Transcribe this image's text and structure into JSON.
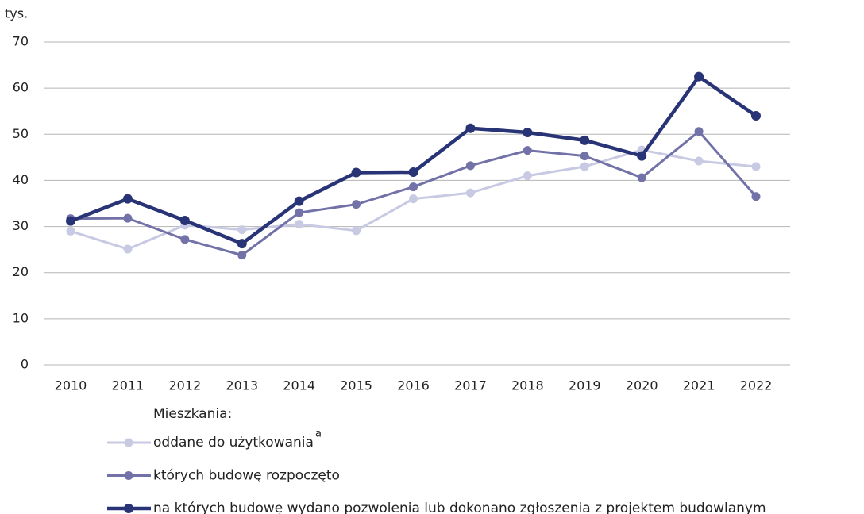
{
  "chart_data": {
    "type": "line",
    "ylabel": "tys.",
    "categories": [
      "2010",
      "2011",
      "2012",
      "2013",
      "2014",
      "2015",
      "2016",
      "2017",
      "2018",
      "2019",
      "2020",
      "2021",
      "2022"
    ],
    "ylim": [
      0,
      70
    ],
    "yticks": [
      0,
      10,
      20,
      30,
      40,
      50,
      60,
      70
    ],
    "grid": true,
    "legend_title": "Mieszkania:",
    "series": [
      {
        "name": "oddane do użytkowania",
        "note": "a",
        "color": "#c8c9e2",
        "values": [
          29.0,
          25.1,
          30.3,
          29.3,
          30.5,
          29.1,
          36.0,
          37.3,
          41.0,
          43.0,
          46.6,
          44.2,
          43.0
        ]
      },
      {
        "name": "których budowę rozpoczęto",
        "color": "#7272a8",
        "values": [
          31.7,
          31.8,
          27.2,
          23.8,
          33.0,
          34.8,
          38.6,
          43.2,
          46.5,
          45.3,
          40.6,
          50.6,
          36.5
        ]
      },
      {
        "name": "na których budowę wydano pozwolenia lub dokonano zgłoszenia z projektem budowlanym",
        "color": "#283476",
        "values": [
          31.2,
          36.0,
          31.3,
          26.3,
          35.5,
          41.7,
          41.8,
          51.3,
          50.4,
          48.7,
          45.3,
          62.5,
          54.0
        ]
      }
    ]
  }
}
